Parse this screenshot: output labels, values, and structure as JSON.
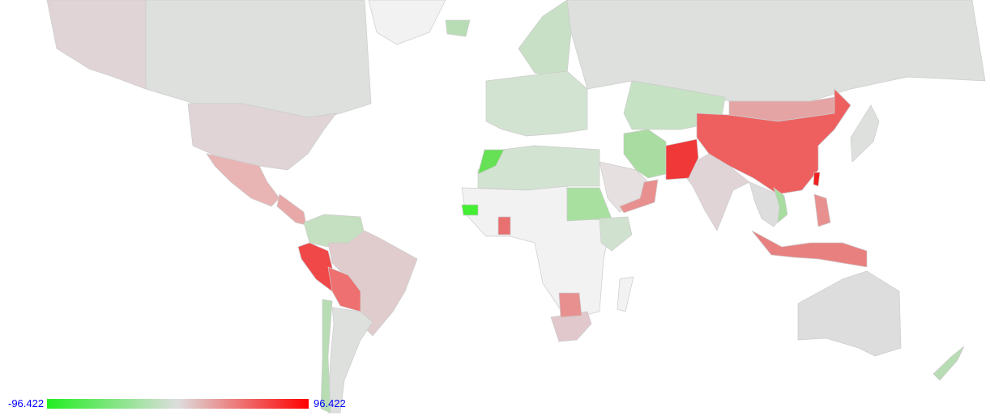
{
  "legend": {
    "min_label": "-96.422",
    "max_label": "96.422",
    "min_value": -96.422,
    "max_value": 96.422,
    "colors": [
      "#22ee22",
      "#dddddd",
      "#ff0000"
    ]
  },
  "colors": {
    "no_data": "#f2f2f2",
    "border": "#cccccc"
  },
  "regions": [
    {
      "id": "canada",
      "color": "#dde0dd"
    },
    {
      "id": "alaska",
      "color": "#e0d4d6"
    },
    {
      "id": "greenland",
      "color": "#f2f2f2"
    },
    {
      "id": "usa",
      "color": "#e0d4d6"
    },
    {
      "id": "mexico",
      "color": "#e8b4b4"
    },
    {
      "id": "central-america",
      "color": "#e8a8a8"
    },
    {
      "id": "colombia-venezuela",
      "color": "#c5e0c0"
    },
    {
      "id": "brazil",
      "color": "#e0cccc"
    },
    {
      "id": "peru",
      "color": "#f04848"
    },
    {
      "id": "bolivia",
      "color": "#ee7070"
    },
    {
      "id": "argentina",
      "color": "#dde0dd"
    },
    {
      "id": "chile",
      "color": "#b8dcb4"
    },
    {
      "id": "scandinavia",
      "color": "#c8e0c5"
    },
    {
      "id": "iceland",
      "color": "#b8dcb4"
    },
    {
      "id": "europe",
      "color": "#d3e3d1"
    },
    {
      "id": "russia",
      "color": "#dde0dd"
    },
    {
      "id": "kazakhstan",
      "color": "#c5e2c3"
    },
    {
      "id": "mongolia",
      "color": "#e4a4a4"
    },
    {
      "id": "china",
      "color": "#ee6060"
    },
    {
      "id": "india",
      "color": "#e0d4d6"
    },
    {
      "id": "iran",
      "color": "#a8dca0"
    },
    {
      "id": "afghanistan-pakistan",
      "color": "#f03838"
    },
    {
      "id": "arabia",
      "color": "#e6e0e0"
    },
    {
      "id": "oman-yemen",
      "color": "#e89090"
    },
    {
      "id": "north-africa",
      "color": "#d3e3d1"
    },
    {
      "id": "morocco",
      "color": "#66e055"
    },
    {
      "id": "central-africa",
      "color": "#f2f2f2"
    },
    {
      "id": "sudan",
      "color": "#a8e0a0"
    },
    {
      "id": "east-africa",
      "color": "#d0e2cf"
    },
    {
      "id": "senegal",
      "color": "#44ee33"
    },
    {
      "id": "ghana",
      "color": "#e87070"
    },
    {
      "id": "south-africa",
      "color": "#e0c8cc"
    },
    {
      "id": "botswana",
      "color": "#e89090"
    },
    {
      "id": "madagascar",
      "color": "#f2f2f2"
    },
    {
      "id": "southeast-asia",
      "color": "#dddddd"
    },
    {
      "id": "vietnam",
      "color": "#a8dca0"
    },
    {
      "id": "indonesia",
      "color": "#e88080"
    },
    {
      "id": "philippines",
      "color": "#e89090"
    },
    {
      "id": "japan",
      "color": "#dde0dd"
    },
    {
      "id": "taiwan",
      "color": "#f02020"
    },
    {
      "id": "australia",
      "color": "#dddddd"
    },
    {
      "id": "new-zealand",
      "color": "#b8dcb4"
    }
  ]
}
